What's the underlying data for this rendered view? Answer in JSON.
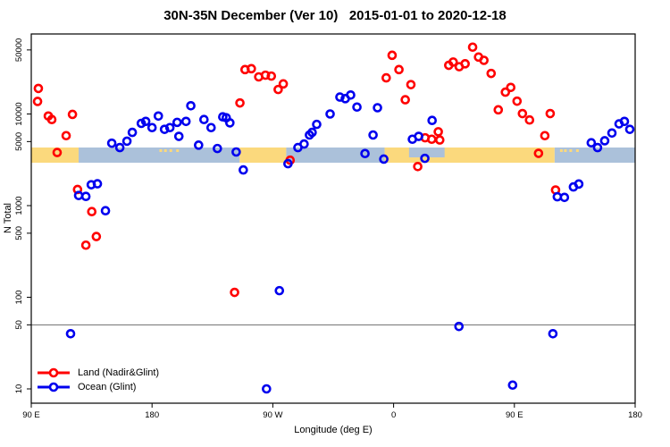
{
  "title": "30N-35N December (Ver 10)   2015-01-01 to 2020-12-18",
  "y_axis": {
    "label": "N Total",
    "scale": "log10",
    "ticks": [
      50000,
      10000,
      5000,
      1000,
      500,
      100,
      50,
      10
    ]
  },
  "x_axis": {
    "label": "Longitude (deg E)",
    "ticks": [
      {
        "deg": 0,
        "label": "90 E"
      },
      {
        "deg": 90,
        "label": "180"
      },
      {
        "deg": 180,
        "label": "90 W"
      },
      {
        "deg": 270,
        "label": "0"
      },
      {
        "deg": 360,
        "label": "90 E"
      },
      {
        "deg": 450,
        "label": "180"
      }
    ]
  },
  "refline": {
    "value": 50,
    "color": "#6e6e6e"
  },
  "legend": {
    "items": [
      {
        "label": "Land (Nadir&Glint)",
        "color": "#ff0000"
      },
      {
        "label": "Ocean (Glint)",
        "color": "#0000ee"
      }
    ]
  },
  "map_strip": {
    "description": "30N-35N land/ocean strip drawn across the plot near N=3000-4500",
    "land_color": "#fbd97d",
    "ocean_color": "#abc1da",
    "segments": [
      {
        "from": 0,
        "to": 35.3,
        "type": "land"
      },
      {
        "from": 35.3,
        "to": 155.3,
        "type": "ocean"
      },
      {
        "from": 155.3,
        "to": 190,
        "type": "land"
      },
      {
        "from": 190,
        "to": 263.3,
        "type": "ocean"
      },
      {
        "from": 263.3,
        "to": 390,
        "type": "land"
      },
      {
        "from": 390,
        "to": 450,
        "type": "ocean"
      }
    ],
    "mediterranean_notch": {
      "from": 281.5,
      "to": 308
    },
    "island_specks_deg": [
      95.5,
      99,
      103,
      108,
      394,
      397,
      401,
      406
    ]
  },
  "chart_data": {
    "type": "scatter",
    "title": "30N-35N December (Ver 10)   2015-01-01 to 2020-12-18",
    "xlabel": "Longitude (deg E)",
    "ylabel": "N Total",
    "x_axis_note": "x = degrees eastward from 90E; axis reads 90E,180,90W,0,90E,180",
    "x_range_deg": [
      0,
      450
    ],
    "ylog": true,
    "ylim": [
      10,
      50000
    ],
    "grid": false,
    "legend_position": "bottom-left-inside",
    "series": [
      {
        "name": "Land (Nadir&Glint)",
        "color": "#ff0000",
        "points": [
          [
            4.7,
            13700
          ],
          [
            5.3,
            19000
          ],
          [
            12.7,
            9500
          ],
          [
            15.3,
            8700
          ],
          [
            19.3,
            3800
          ],
          [
            26,
            5800
          ],
          [
            30.7,
            9900
          ],
          [
            34.5,
            1500
          ],
          [
            40.7,
            370
          ],
          [
            45.1,
            860
          ],
          [
            48.5,
            460
          ],
          [
            151.5,
            113
          ],
          [
            155.5,
            13200
          ],
          [
            159.3,
            30500
          ],
          [
            164,
            31200
          ],
          [
            169.5,
            25400
          ],
          [
            174.5,
            26500
          ],
          [
            178.9,
            25900
          ],
          [
            184,
            18500
          ],
          [
            187.8,
            21300
          ],
          [
            192.9,
            3130
          ],
          [
            264.5,
            24800
          ],
          [
            268.9,
            43700
          ],
          [
            274,
            30500
          ],
          [
            278.7,
            14300
          ],
          [
            282.9,
            20900
          ],
          [
            288,
            2670
          ],
          [
            293.5,
            5500
          ],
          [
            298.4,
            5300
          ],
          [
            303.3,
            6400
          ],
          [
            304.4,
            5200
          ],
          [
            311.1,
            34000
          ],
          [
            314.4,
            36900
          ],
          [
            318.9,
            32800
          ],
          [
            323.3,
            35300
          ],
          [
            328.9,
            53600
          ],
          [
            333.3,
            41800
          ],
          [
            337.3,
            38500
          ],
          [
            342.7,
            27700
          ],
          [
            348,
            11100
          ],
          [
            353.3,
            17300
          ],
          [
            357.3,
            19500
          ],
          [
            362,
            13800
          ],
          [
            366,
            10100
          ],
          [
            371.3,
            8600
          ],
          [
            378,
            3720
          ],
          [
            382.7,
            5800
          ],
          [
            386.7,
            10100
          ],
          [
            390.7,
            1480
          ]
        ]
      },
      {
        "name": "Ocean (Glint)",
        "color": "#0000ee",
        "points": [
          [
            29.3,
            40
          ],
          [
            35.3,
            1290
          ],
          [
            40.7,
            1260
          ],
          [
            44.7,
            1690
          ],
          [
            49.3,
            1730
          ],
          [
            55.3,
            880
          ],
          [
            60,
            4800
          ],
          [
            66,
            4300
          ],
          [
            71.3,
            5050
          ],
          [
            75.3,
            6300
          ],
          [
            82,
            7900
          ],
          [
            85.3,
            8300
          ],
          [
            90,
            7100
          ],
          [
            94.7,
            9500
          ],
          [
            99.3,
            6800
          ],
          [
            103.3,
            7100
          ],
          [
            108.7,
            8100
          ],
          [
            110,
            5700
          ],
          [
            115.3,
            8300
          ],
          [
            118.9,
            12300
          ],
          [
            124.7,
            4570
          ],
          [
            128.7,
            8700
          ],
          [
            134,
            7100
          ],
          [
            138.7,
            4200
          ],
          [
            142.7,
            9300
          ],
          [
            145.3,
            9100
          ],
          [
            148,
            8000
          ],
          [
            152.7,
            3850
          ],
          [
            158,
            2450
          ],
          [
            175.3,
            10
          ],
          [
            184.9,
            118
          ],
          [
            191.3,
            2870
          ],
          [
            198.7,
            4300
          ],
          [
            203.3,
            4700
          ],
          [
            207.3,
            5900
          ],
          [
            209.3,
            6300
          ],
          [
            212.7,
            7700
          ],
          [
            222.7,
            10000
          ],
          [
            230,
            15300
          ],
          [
            234,
            14700
          ],
          [
            238,
            16100
          ],
          [
            242.7,
            11900
          ],
          [
            248.7,
            3700
          ],
          [
            254.7,
            5900
          ],
          [
            258,
            11700
          ],
          [
            262.7,
            3220
          ],
          [
            284,
            5300
          ],
          [
            288.7,
            5700
          ],
          [
            293.3,
            3280
          ],
          [
            298.7,
            8500
          ],
          [
            318.7,
            48
          ],
          [
            358.7,
            11
          ],
          [
            388.7,
            40
          ],
          [
            392,
            1250
          ],
          [
            397.3,
            1230
          ],
          [
            404,
            1600
          ],
          [
            408,
            1720
          ],
          [
            417.3,
            4850
          ],
          [
            422,
            4300
          ],
          [
            427.3,
            5100
          ],
          [
            432.7,
            6200
          ],
          [
            438,
            7800
          ],
          [
            442,
            8300
          ],
          [
            446,
            6800
          ]
        ]
      }
    ]
  }
}
